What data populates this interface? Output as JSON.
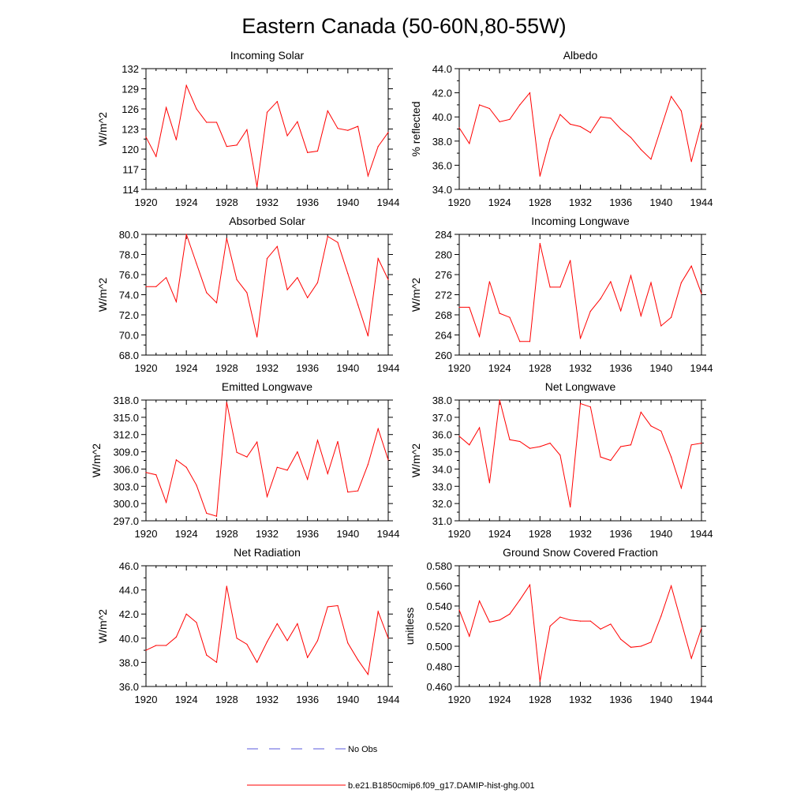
{
  "figure_title": "Eastern Canada (50-60N,80-55W)",
  "legend": {
    "items": [
      {
        "label": "No Obs",
        "style": "dashed",
        "color": "#5a5adc"
      },
      {
        "label": "b.e21.B1850cmip6.f09_g17.DAMIP-hist-ghg.001",
        "style": "solid",
        "color": "#ff0000"
      }
    ]
  },
  "colors": {
    "series": "#ff0000",
    "axes": "#000000"
  },
  "chart_data": [
    {
      "type": "line",
      "title": "Incoming Solar",
      "ylabel": "W/m^2",
      "xlabel": "",
      "xlim": [
        1920,
        1944
      ],
      "ylim": [
        114,
        132
      ],
      "x_ticks": [
        "1920",
        "1924",
        "1928",
        "1932",
        "1936",
        "1940",
        "1944"
      ],
      "y_ticks": [
        "114",
        "117",
        "120",
        "123",
        "126",
        "129",
        "132"
      ],
      "x": [
        1920,
        1921,
        1922,
        1923,
        1924,
        1925,
        1926,
        1927,
        1928,
        1929,
        1930,
        1931,
        1932,
        1933,
        1934,
        1935,
        1936,
        1937,
        1938,
        1939,
        1940,
        1941,
        1942,
        1943,
        1944
      ],
      "series": [
        {
          "name": "b.e21.B1850cmip6.f09_g17.DAMIP-hist-ghg.001",
          "values": [
            121.8,
            118.9,
            126.2,
            121.4,
            129.5,
            126.0,
            124.0,
            124.0,
            120.4,
            120.6,
            122.9,
            114.4,
            125.5,
            127.1,
            122.0,
            124.1,
            119.5,
            119.7,
            125.7,
            123.1,
            122.8,
            123.4,
            116.0,
            120.4,
            122.5
          ]
        }
      ]
    },
    {
      "type": "line",
      "title": "Albedo",
      "ylabel": "% reflected",
      "xlabel": "",
      "xlim": [
        1920,
        1944
      ],
      "ylim": [
        34.0,
        44.0
      ],
      "x_ticks": [
        "1920",
        "1924",
        "1928",
        "1932",
        "1936",
        "1940",
        "1944"
      ],
      "y_ticks": [
        "34.0",
        "36.0",
        "38.0",
        "40.0",
        "42.0",
        "44.0"
      ],
      "x": [
        1920,
        1921,
        1922,
        1923,
        1924,
        1925,
        1926,
        1927,
        1928,
        1929,
        1930,
        1931,
        1932,
        1933,
        1934,
        1935,
        1936,
        1937,
        1938,
        1939,
        1940,
        1941,
        1942,
        1943,
        1944
      ],
      "series": [
        {
          "name": "b.e21.B1850cmip6.f09_g17.DAMIP-hist-ghg.001",
          "values": [
            39.1,
            37.8,
            41.0,
            40.7,
            39.6,
            39.8,
            41.0,
            42.0,
            35.1,
            38.2,
            40.2,
            39.4,
            39.2,
            38.7,
            40.0,
            39.9,
            39.0,
            38.3,
            37.3,
            36.5,
            39.1,
            41.7,
            40.5,
            36.3,
            39.5
          ]
        }
      ]
    },
    {
      "type": "line",
      "title": "Absorbed Solar",
      "ylabel": "W/m^2",
      "xlabel": "",
      "xlim": [
        1920,
        1944
      ],
      "ylim": [
        68.0,
        80.0
      ],
      "x_ticks": [
        "1920",
        "1924",
        "1928",
        "1932",
        "1936",
        "1940",
        "1944"
      ],
      "y_ticks": [
        "68.0",
        "70.0",
        "72.0",
        "74.0",
        "76.0",
        "78.0",
        "80.0"
      ],
      "x": [
        1920,
        1921,
        1922,
        1923,
        1924,
        1925,
        1926,
        1927,
        1928,
        1929,
        1930,
        1931,
        1932,
        1933,
        1934,
        1935,
        1936,
        1937,
        1938,
        1939,
        1940,
        1941,
        1942,
        1943,
        1944
      ],
      "series": [
        {
          "name": "b.e21.B1850cmip6.f09_g17.DAMIP-hist-ghg.001",
          "values": [
            74.8,
            74.8,
            75.7,
            73.3,
            80.0,
            77.1,
            74.2,
            73.2,
            79.6,
            75.5,
            74.2,
            69.8,
            77.6,
            78.8,
            74.5,
            75.7,
            73.7,
            75.2,
            79.8,
            79.2,
            76.1,
            73.0,
            69.9,
            77.6,
            75.5
          ]
        }
      ]
    },
    {
      "type": "line",
      "title": "Incoming Longwave",
      "ylabel": "W/m^2",
      "xlabel": "",
      "xlim": [
        1920,
        1944
      ],
      "ylim": [
        260,
        284
      ],
      "x_ticks": [
        "1920",
        "1924",
        "1928",
        "1932",
        "1936",
        "1940",
        "1944"
      ],
      "y_ticks": [
        "260",
        "264",
        "268",
        "272",
        "276",
        "280",
        "284"
      ],
      "x": [
        1920,
        1921,
        1922,
        1923,
        1924,
        1925,
        1926,
        1927,
        1928,
        1929,
        1930,
        1931,
        1932,
        1933,
        1934,
        1935,
        1936,
        1937,
        1938,
        1939,
        1940,
        1941,
        1942,
        1943,
        1944
      ],
      "series": [
        {
          "name": "b.e21.B1850cmip6.f09_g17.DAMIP-hist-ghg.001",
          "values": [
            269.5,
            269.5,
            263.7,
            274.6,
            268.3,
            267.5,
            262.7,
            262.7,
            282.2,
            273.5,
            273.5,
            278.8,
            263.3,
            268.7,
            271.2,
            274.6,
            268.8,
            275.8,
            267.8,
            274.4,
            265.8,
            267.5,
            274.4,
            277.7,
            272.2
          ]
        }
      ]
    },
    {
      "type": "line",
      "title": "Emitted Longwave",
      "ylabel": "W/m^2",
      "xlabel": "",
      "xlim": [
        1920,
        1944
      ],
      "ylim": [
        297.0,
        318.0
      ],
      "x_ticks": [
        "1920",
        "1924",
        "1928",
        "1932",
        "1936",
        "1940",
        "1944"
      ],
      "y_ticks": [
        "297.0",
        "300.0",
        "303.0",
        "306.0",
        "309.0",
        "312.0",
        "315.0",
        "318.0"
      ],
      "x": [
        1920,
        1921,
        1922,
        1923,
        1924,
        1925,
        1926,
        1927,
        1928,
        1929,
        1930,
        1931,
        1932,
        1933,
        1934,
        1935,
        1936,
        1937,
        1938,
        1939,
        1940,
        1941,
        1942,
        1943,
        1944
      ],
      "series": [
        {
          "name": "b.e21.B1850cmip6.f09_g17.DAMIP-hist-ghg.001",
          "values": [
            305.4,
            305.0,
            300.2,
            307.6,
            306.3,
            303.2,
            298.3,
            297.8,
            317.6,
            308.9,
            308.1,
            310.7,
            301.2,
            306.3,
            305.8,
            309.0,
            304.2,
            311.0,
            305.2,
            310.8,
            302.0,
            302.2,
            306.8,
            313.0,
            307.6
          ]
        }
      ]
    },
    {
      "type": "line",
      "title": "Net Longwave",
      "ylabel": "W/m^2",
      "xlabel": "",
      "xlim": [
        1920,
        1944
      ],
      "ylim": [
        31.0,
        38.0
      ],
      "x_ticks": [
        "1920",
        "1924",
        "1928",
        "1932",
        "1936",
        "1940",
        "1944"
      ],
      "y_ticks": [
        "31.0",
        "32.0",
        "33.0",
        "34.0",
        "35.0",
        "36.0",
        "37.0",
        "38.0"
      ],
      "x": [
        1920,
        1921,
        1922,
        1923,
        1924,
        1925,
        1926,
        1927,
        1928,
        1929,
        1930,
        1931,
        1932,
        1933,
        1934,
        1935,
        1936,
        1937,
        1938,
        1939,
        1940,
        1941,
        1942,
        1943,
        1944
      ],
      "series": [
        {
          "name": "b.e21.B1850cmip6.f09_g17.DAMIP-hist-ghg.001",
          "values": [
            35.9,
            35.4,
            36.4,
            33.2,
            38.0,
            35.7,
            35.6,
            35.2,
            35.3,
            35.5,
            34.8,
            31.8,
            37.8,
            37.6,
            34.7,
            34.5,
            35.3,
            35.4,
            37.3,
            36.5,
            36.2,
            34.7,
            32.9,
            35.4,
            35.5
          ]
        }
      ]
    },
    {
      "type": "line",
      "title": "Net Radiation",
      "ylabel": "W/m^2",
      "xlabel": "",
      "xlim": [
        1920,
        1944
      ],
      "ylim": [
        36.0,
        46.0
      ],
      "x_ticks": [
        "1920",
        "1924",
        "1928",
        "1932",
        "1936",
        "1940",
        "1944"
      ],
      "y_ticks": [
        "36.0",
        "38.0",
        "40.0",
        "42.0",
        "44.0",
        "46.0"
      ],
      "x": [
        1920,
        1921,
        1922,
        1923,
        1924,
        1925,
        1926,
        1927,
        1928,
        1929,
        1930,
        1931,
        1932,
        1933,
        1934,
        1935,
        1936,
        1937,
        1938,
        1939,
        1940,
        1941,
        1942,
        1943,
        1944
      ],
      "series": [
        {
          "name": "b.e21.B1850cmip6.f09_g17.DAMIP-hist-ghg.001",
          "values": [
            39.0,
            39.4,
            39.4,
            40.1,
            42.0,
            41.3,
            38.6,
            38.0,
            44.3,
            40.0,
            39.5,
            38.0,
            39.7,
            41.2,
            39.8,
            41.2,
            38.4,
            39.8,
            42.6,
            42.7,
            39.6,
            38.2,
            37.0,
            42.2,
            40.0
          ]
        }
      ]
    },
    {
      "type": "line",
      "title": "Ground Snow Covered Fraction",
      "ylabel": "unitless",
      "xlabel": "",
      "xlim": [
        1920,
        1944
      ],
      "ylim": [
        0.46,
        0.58
      ],
      "x_ticks": [
        "1920",
        "1924",
        "1928",
        "1932",
        "1936",
        "1940",
        "1944"
      ],
      "y_ticks": [
        "0.460",
        "0.480",
        "0.500",
        "0.520",
        "0.540",
        "0.560",
        "0.580"
      ],
      "x": [
        1920,
        1921,
        1922,
        1923,
        1924,
        1925,
        1926,
        1927,
        1928,
        1929,
        1930,
        1931,
        1932,
        1933,
        1934,
        1935,
        1936,
        1937,
        1938,
        1939,
        1940,
        1941,
        1942,
        1943,
        1944
      ],
      "series": [
        {
          "name": "b.e21.B1850cmip6.f09_g17.DAMIP-hist-ghg.001",
          "values": [
            0.536,
            0.51,
            0.545,
            0.524,
            0.526,
            0.532,
            0.546,
            0.561,
            0.465,
            0.52,
            0.529,
            0.526,
            0.525,
            0.525,
            0.517,
            0.522,
            0.507,
            0.499,
            0.5,
            0.504,
            0.53,
            0.56,
            0.524,
            0.488,
            0.518
          ]
        }
      ]
    }
  ]
}
